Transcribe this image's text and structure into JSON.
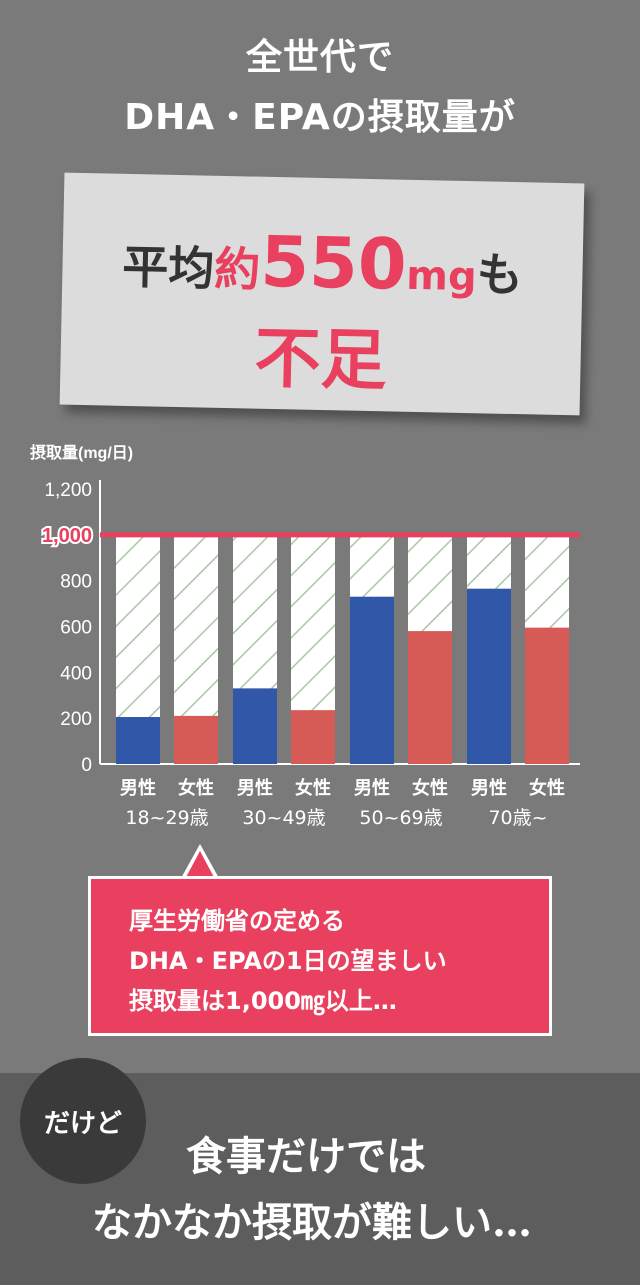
{
  "headline": {
    "line1": "全世代で",
    "line2": "DHA・EPAの摂取量が"
  },
  "card": {
    "prefix": "平均",
    "approx": "約",
    "number": "550",
    "unit": "mg",
    "suffix": "も",
    "line2": "不足"
  },
  "callout": {
    "line1": "厚生労働省の定める",
    "line2": "DHA・EPAの1日の望ましい",
    "line3": "摂取量は1,000㎎以上…"
  },
  "bottom": {
    "badge": "だけど",
    "line1": "食事だけでは",
    "line2": "なかなか摂取が難しい…"
  },
  "colors": {
    "male": "#3057a8",
    "female": "#d65a55",
    "accent": "#e8405e",
    "stripe": "#9fbf9a"
  },
  "chart_data": {
    "type": "bar",
    "ylabel": "摂取量(mg/日)",
    "ylim": [
      0,
      1200
    ],
    "yticks": [
      "1,200",
      "",
      "800",
      "600",
      "400",
      "200",
      "0"
    ],
    "ytick_values": [
      1200,
      1000,
      800,
      600,
      400,
      200,
      0
    ],
    "reference": {
      "value": 1000,
      "label": "1,000"
    },
    "groups": [
      {
        "label": "18~29歳"
      },
      {
        "label": "30~49歳"
      },
      {
        "label": "50~69歳"
      },
      {
        "label": "70歳~"
      }
    ],
    "sexes": [
      "男性",
      "女性"
    ],
    "series": [
      {
        "name": "男性",
        "values": [
          205,
          330,
          730,
          765
        ]
      },
      {
        "name": "女性",
        "values": [
          210,
          235,
          580,
          595
        ]
      }
    ],
    "target_background": 1000
  }
}
